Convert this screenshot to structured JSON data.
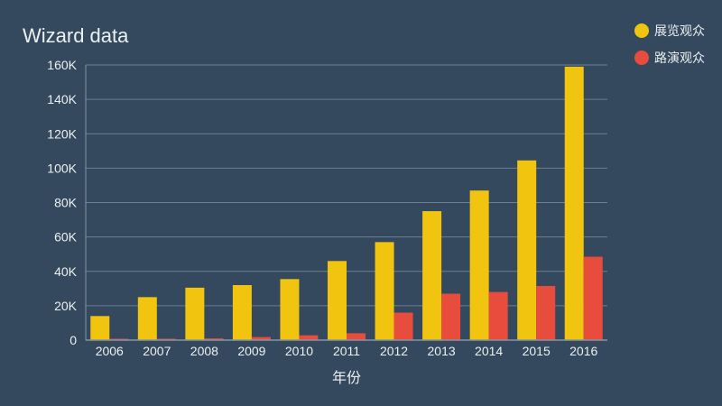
{
  "chart_data": {
    "type": "bar",
    "title": "Wizard data",
    "xlabel": "年份",
    "ylabel": "",
    "categories": [
      "2006",
      "2007",
      "2008",
      "2009",
      "2010",
      "2011",
      "2012",
      "2013",
      "2014",
      "2015",
      "2016"
    ],
    "series": [
      {
        "name": "展览观众",
        "color": "#f1c40f",
        "values": [
          14000,
          25000,
          30500,
          32000,
          35500,
          46000,
          57000,
          75000,
          87000,
          104500,
          159000
        ]
      },
      {
        "name": "路演观众",
        "color": "#e74c3c",
        "values": [
          800,
          800,
          1000,
          1800,
          2800,
          4000,
          16000,
          27000,
          28000,
          31500,
          48500
        ]
      }
    ],
    "ylim": [
      0,
      160000
    ],
    "yticks": [
      "0",
      "20K",
      "40K",
      "60K",
      "80K",
      "100K",
      "120K",
      "140K",
      "160K"
    ],
    "grid": true,
    "legend_position": "top-right"
  }
}
